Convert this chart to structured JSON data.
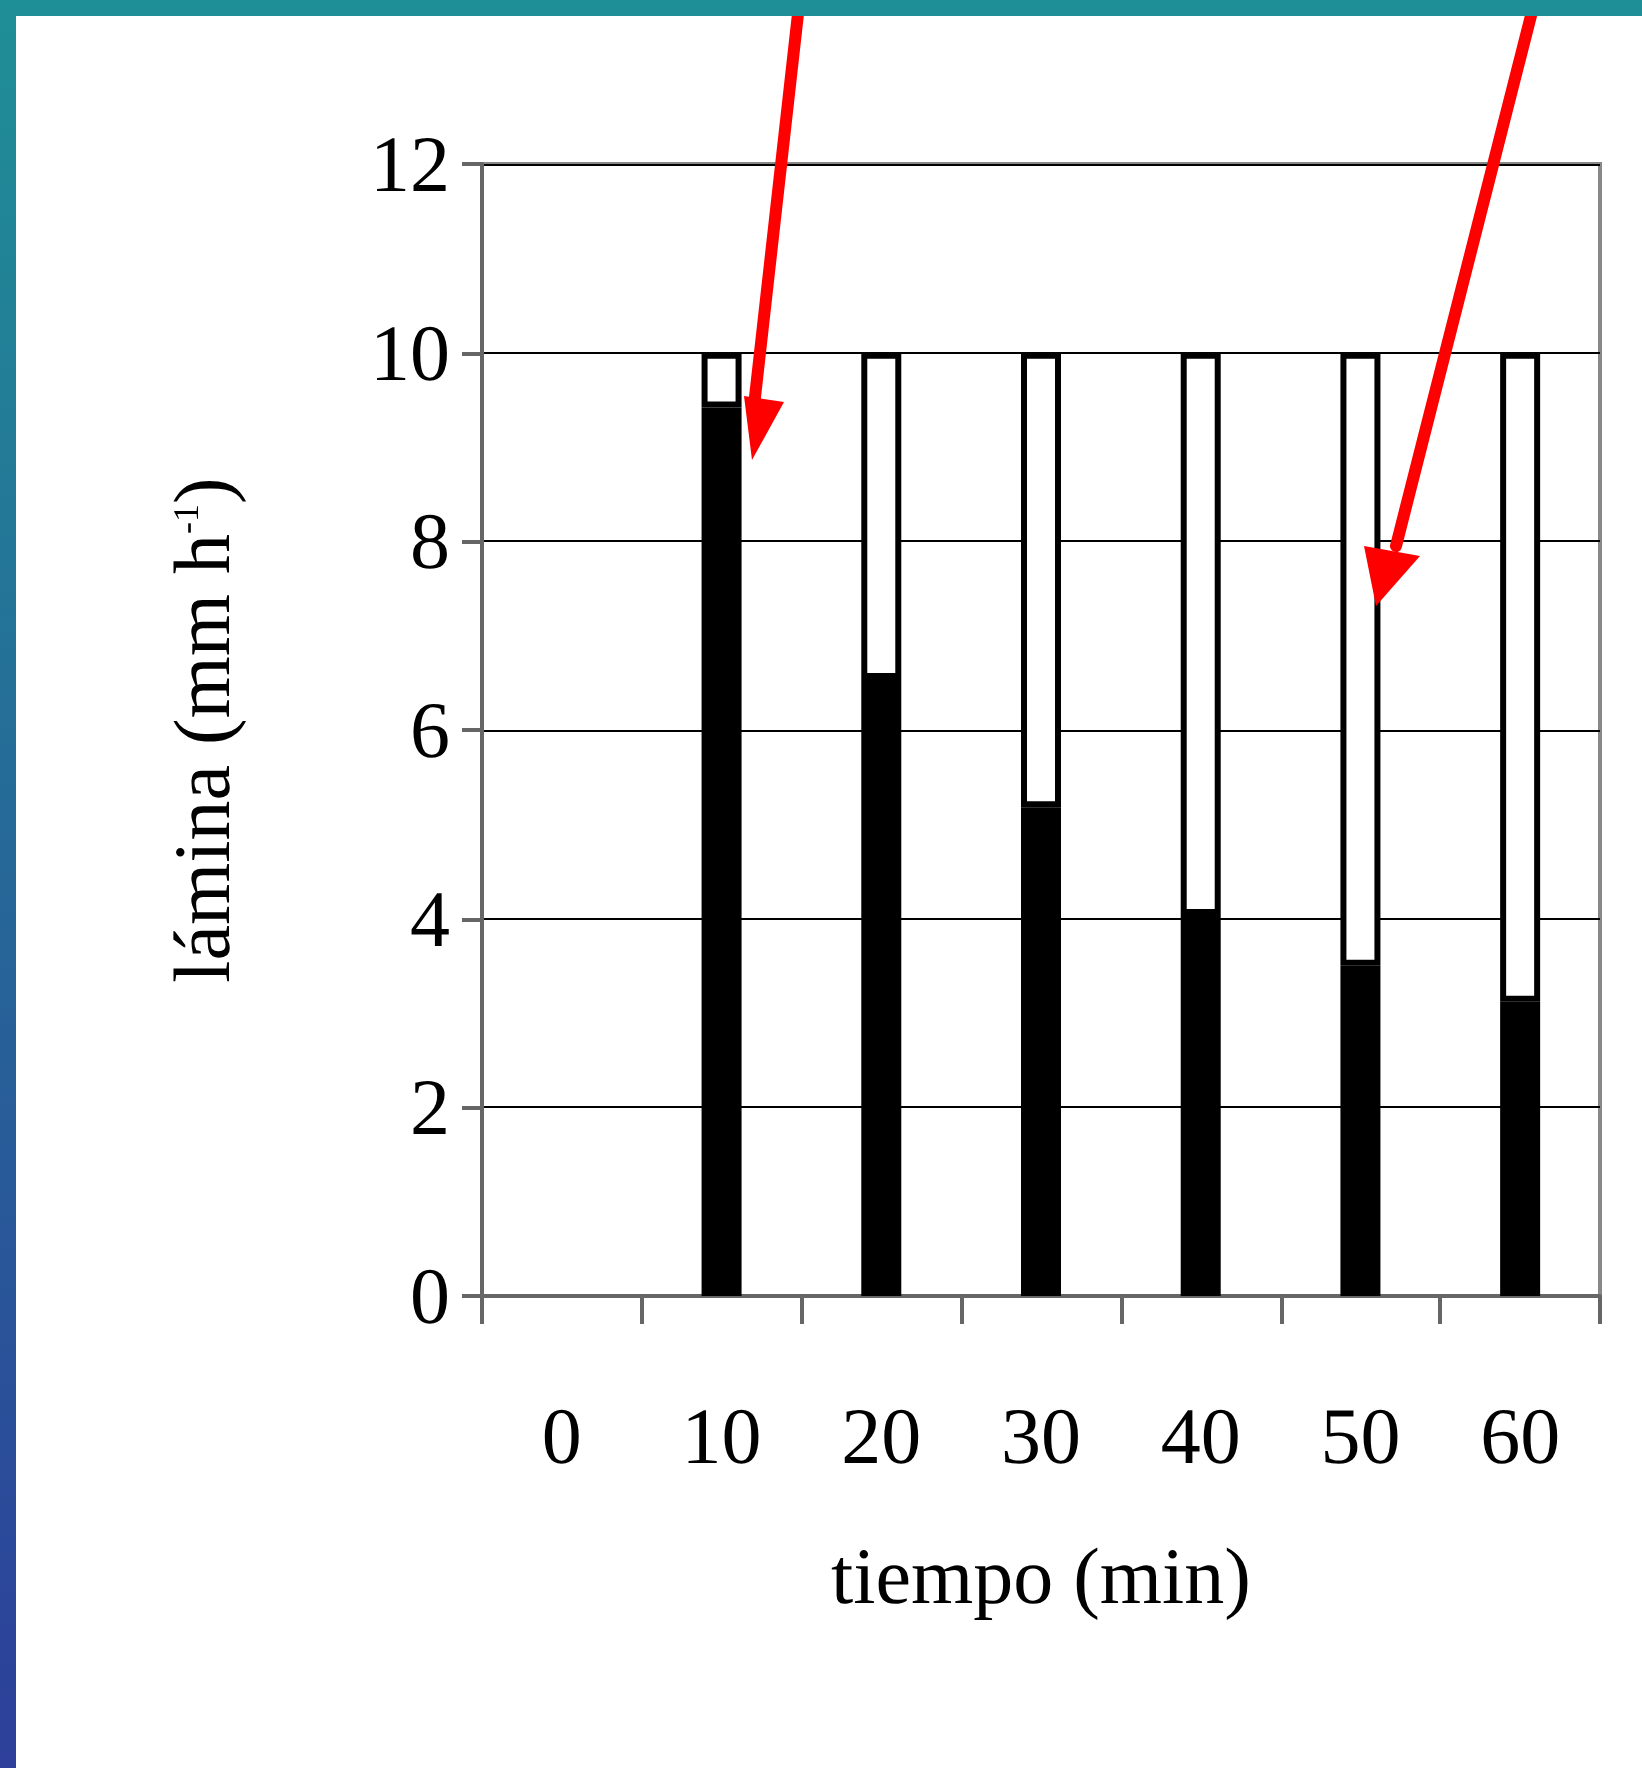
{
  "chart_data": {
    "type": "bar",
    "stacked": true,
    "xlabel": "tiempo (min)",
    "ylabel": "lámina (mm h$^{-1}$)",
    "categories": [
      "0",
      "10",
      "20",
      "30",
      "40",
      "50",
      "60"
    ],
    "series": [
      {
        "color": "#000000",
        "values": [
          null,
          9.42,
          6.54,
          5.18,
          4.04,
          3.5,
          3.12
        ]
      },
      {
        "color": "#ffffff",
        "values": [
          null,
          0.58,
          3.46,
          4.82,
          5.96,
          6.5,
          6.88
        ]
      }
    ],
    "ylim": [
      0,
      12
    ],
    "yticks": [
      0,
      2,
      4,
      6,
      8,
      10,
      12
    ],
    "grid": "y"
  }
}
